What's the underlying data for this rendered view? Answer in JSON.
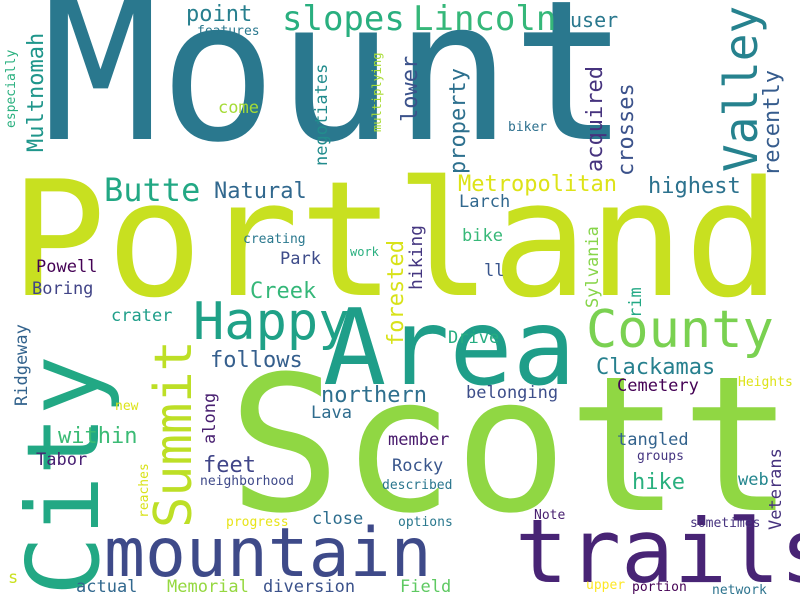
{
  "cloud": {
    "background": "#ffffff",
    "words": [
      {
        "text": "Mount",
        "color": "#2a788e",
        "vertical": false
      },
      {
        "text": "Portland",
        "color": "#c8e020",
        "vertical": false
      },
      {
        "text": "Scott",
        "color": "#90d743",
        "vertical": false
      },
      {
        "text": "Area",
        "color": "#1f9e89",
        "vertical": false
      },
      {
        "text": "City",
        "color": "#22a884",
        "vertical": true
      },
      {
        "text": "mountain",
        "color": "#3e4a89",
        "vertical": false
      },
      {
        "text": "trails",
        "color": "#482475",
        "vertical": false
      },
      {
        "text": "County",
        "color": "#7ad151",
        "vertical": false
      },
      {
        "text": "Happy",
        "color": "#1fa187",
        "vertical": false
      },
      {
        "text": "Summit",
        "color": "#bddf26",
        "vertical": true
      },
      {
        "text": "Valley",
        "color": "#26828e",
        "vertical": true
      },
      {
        "text": "Lincoln",
        "color": "#35b779",
        "vertical": false
      },
      {
        "text": "slopes",
        "color": "#29af7f",
        "vertical": false
      },
      {
        "text": "Butte",
        "color": "#22a884",
        "vertical": false
      },
      {
        "text": "Metropolitan",
        "color": "#dde318",
        "vertical": false
      },
      {
        "text": "highest",
        "color": "#2c728e",
        "vertical": false
      },
      {
        "text": "Natural",
        "color": "#31688e",
        "vertical": false
      },
      {
        "text": "point",
        "color": "#277f8e",
        "vertical": false
      },
      {
        "text": "user",
        "color": "#2a788e",
        "vertical": false
      },
      {
        "text": "Multnomah",
        "color": "#1f968b",
        "vertical": true
      },
      {
        "text": "lower",
        "color": "#3b528b",
        "vertical": true
      },
      {
        "text": "property",
        "color": "#2d708e",
        "vertical": true
      },
      {
        "text": "acquired",
        "color": "#46337e",
        "vertical": true
      },
      {
        "text": "crosses",
        "color": "#3b528b",
        "vertical": true
      },
      {
        "text": "recently",
        "color": "#365c8d",
        "vertical": true
      },
      {
        "text": "forested",
        "color": "#d8e219",
        "vertical": true
      },
      {
        "text": "hiking",
        "color": "#453781",
        "vertical": true
      },
      {
        "text": "negotiates",
        "color": "#228c8d",
        "vertical": true
      },
      {
        "text": "Larch",
        "color": "#31688e",
        "vertical": false
      },
      {
        "text": "bike",
        "color": "#37b878",
        "vertical": false
      },
      {
        "text": "come",
        "color": "#a5db36",
        "vertical": false
      },
      {
        "text": "features",
        "color": "#2a788e",
        "vertical": false
      },
      {
        "text": "especially",
        "color": "#2ab07f",
        "vertical": true
      },
      {
        "text": "multiplying",
        "color": "#a8db34",
        "vertical": true
      },
      {
        "text": "biker",
        "color": "#2d708e",
        "vertical": false
      },
      {
        "text": "creating",
        "color": "#2a788e",
        "vertical": false
      },
      {
        "text": "work",
        "color": "#29af7f",
        "vertical": false
      },
      {
        "text": "Powell",
        "color": "#440154",
        "vertical": false
      },
      {
        "text": "Boring",
        "color": "#414487",
        "vertical": false
      },
      {
        "text": "Park",
        "color": "#3e4c8a",
        "vertical": false
      },
      {
        "text": "ll",
        "color": "#39558c",
        "vertical": false
      },
      {
        "text": "Creek",
        "color": "#35b779",
        "vertical": false
      },
      {
        "text": "Sylvania",
        "color": "#86d549",
        "vertical": true
      },
      {
        "text": "rim",
        "color": "#22a884",
        "vertical": true
      },
      {
        "text": "crater",
        "color": "#1f9e89",
        "vertical": false
      },
      {
        "text": "Drive",
        "color": "#26ad81",
        "vertical": false
      },
      {
        "text": "follows",
        "color": "#355f8d",
        "vertical": false
      },
      {
        "text": "Clackamas",
        "color": "#27808e",
        "vertical": false
      },
      {
        "text": "Cemetery",
        "color": "#440154",
        "vertical": false
      },
      {
        "text": "Heights",
        "color": "#dde318",
        "vertical": false
      },
      {
        "text": "northern",
        "color": "#2e6f8e",
        "vertical": false
      },
      {
        "text": "belonging",
        "color": "#3d4e8a",
        "vertical": false
      },
      {
        "text": "Ridgeway",
        "color": "#33638d",
        "vertical": true
      },
      {
        "text": "along",
        "color": "#481f70",
        "vertical": true
      },
      {
        "text": "Lava",
        "color": "#2f6c8e",
        "vertical": false
      },
      {
        "text": "within",
        "color": "#3bbb75",
        "vertical": false
      },
      {
        "text": "new",
        "color": "#dde318",
        "vertical": false
      },
      {
        "text": "member",
        "color": "#481a6c",
        "vertical": false
      },
      {
        "text": "tangled",
        "color": "#33638d",
        "vertical": false
      },
      {
        "text": "Veterans",
        "color": "#46327e",
        "vertical": true
      },
      {
        "text": "Tabor",
        "color": "#482173",
        "vertical": false
      },
      {
        "text": "feet",
        "color": "#404588",
        "vertical": false
      },
      {
        "text": "Rocky",
        "color": "#39568c",
        "vertical": false
      },
      {
        "text": "hike",
        "color": "#2ab07f",
        "vertical": false
      },
      {
        "text": "groups",
        "color": "#453581",
        "vertical": false
      },
      {
        "text": "web",
        "color": "#24868e",
        "vertical": false
      },
      {
        "text": "reaches",
        "color": "#d8e219",
        "vertical": true
      },
      {
        "text": "neighborhood",
        "color": "#3e4989",
        "vertical": false
      },
      {
        "text": "described",
        "color": "#2a768e",
        "vertical": false
      },
      {
        "text": "progress",
        "color": "#e7e419",
        "vertical": false
      },
      {
        "text": "close",
        "color": "#2e6e8e",
        "vertical": false
      },
      {
        "text": "options",
        "color": "#2a788e",
        "vertical": false
      },
      {
        "text": "Note",
        "color": "#481f70",
        "vertical": false
      },
      {
        "text": "sometimes",
        "color": "#46327e",
        "vertical": false
      },
      {
        "text": "s",
        "color": "#cae11f",
        "vertical": false
      },
      {
        "text": "actual",
        "color": "#31688e",
        "vertical": false
      },
      {
        "text": "Memorial",
        "color": "#95d840",
        "vertical": false
      },
      {
        "text": "diversion",
        "color": "#3b528b",
        "vertical": false
      },
      {
        "text": "Field",
        "color": "#5ec962",
        "vertical": false
      },
      {
        "text": "upper",
        "color": "#fde725",
        "vertical": false
      },
      {
        "text": "portion",
        "color": "#440154",
        "vertical": false
      },
      {
        "text": "network",
        "color": "#2c738e",
        "vertical": false
      }
    ]
  }
}
